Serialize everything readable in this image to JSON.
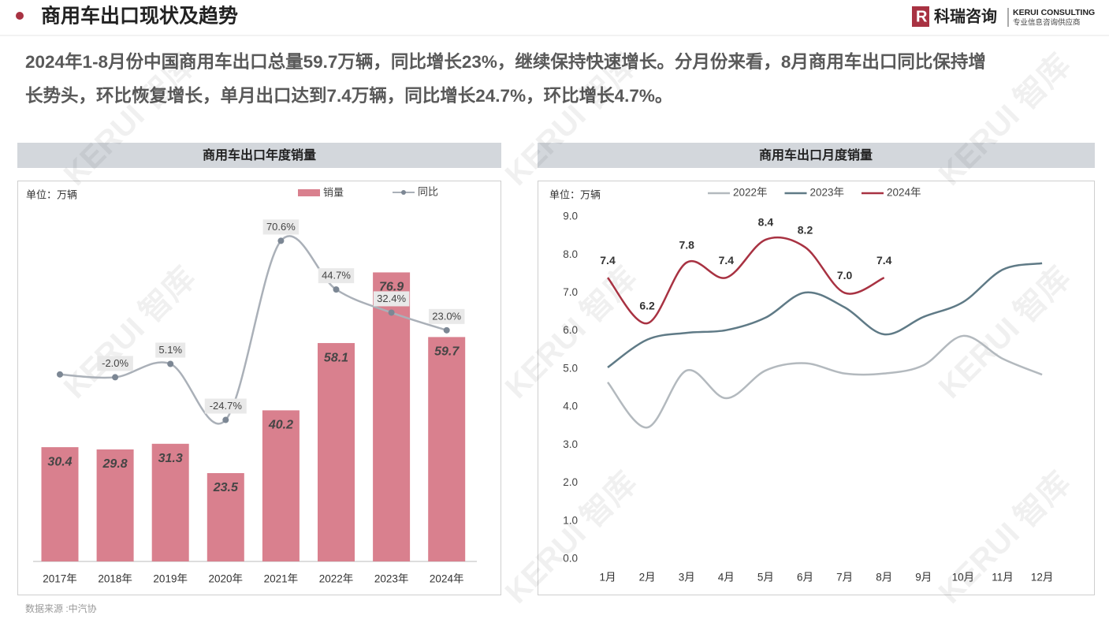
{
  "header": {
    "title": "商用车出口现状及趋势",
    "logo_name": "科瑞咨询",
    "logo_en": "KERUI CONSULTING",
    "logo_sub": "专业信息咨询供应商"
  },
  "paragraph": [
    "2024年1-8月份中国商用车出口总量59.7万辆，同比增长23%，继续保持快速增长。分月份来看，8月商用车出口同比保持增",
    "长势头，环比恢复增长，单月出口达到7.4万辆，同比增长24.7%，环比增长4.7%。"
  ],
  "watermark": "KERUI 智库",
  "source": "数据来源 :中汽协",
  "chart_data": [
    {
      "type": "bar",
      "title": "商用车出口年度销量",
      "unit_label": "单位：万辆",
      "categories": [
        "2017年",
        "2018年",
        "2019年",
        "2020年",
        "2021年",
        "2022年",
        "2023年",
        "2024年"
      ],
      "ylim": [
        0,
        90
      ],
      "y2lim": [
        -100,
        80
      ],
      "series": [
        {
          "name": "销量",
          "type": "bar",
          "color": "#d9808e",
          "values": [
            30.4,
            29.8,
            31.3,
            23.5,
            40.2,
            58.1,
            76.9,
            59.7
          ]
        },
        {
          "name": "同比",
          "type": "line",
          "axis": "y2",
          "color": "#aab0b8",
          "values": [
            -0.5,
            -2.0,
            5.1,
            -24.7,
            70.6,
            44.7,
            32.4,
            23.0
          ],
          "value_labels": [
            null,
            "-2.0%",
            "5.1%",
            "-24.7%",
            "70.6%",
            "44.7%",
            "32.4%",
            "23.0%"
          ]
        }
      ]
    },
    {
      "type": "line",
      "title": "商用车出口月度销量",
      "unit_label": "单位：万辆",
      "categories": [
        "1月",
        "2月",
        "3月",
        "4月",
        "5月",
        "6月",
        "7月",
        "8月",
        "9月",
        "10月",
        "11月",
        "12月"
      ],
      "ylim": [
        0,
        9
      ],
      "yticks": [
        {
          "value": 0,
          "label": "0.0"
        },
        {
          "value": 1,
          "label": "1.0"
        },
        {
          "value": 2,
          "label": "2.0"
        },
        {
          "value": 3,
          "label": "3.0"
        },
        {
          "value": 4,
          "label": "4.0"
        },
        {
          "value": 5,
          "label": "5.0"
        },
        {
          "value": 6,
          "label": "6.0"
        },
        {
          "value": 7,
          "label": "7.0"
        },
        {
          "value": 8,
          "label": "8.0"
        },
        {
          "value": 9,
          "label": "9.0"
        }
      ],
      "series": [
        {
          "name": "2022年",
          "color": "#b3b9be",
          "values": [
            4.65,
            3.46,
            4.96,
            4.23,
            4.96,
            5.15,
            4.88,
            4.88,
            5.1,
            5.87,
            5.27,
            4.85
          ]
        },
        {
          "name": "2023年",
          "color": "#5f7a86",
          "values": [
            5.04,
            5.77,
            5.95,
            6.02,
            6.35,
            7.01,
            6.62,
            5.91,
            6.37,
            6.76,
            7.61,
            7.78
          ]
        },
        {
          "name": "2024年",
          "color": "#a83242",
          "values": [
            7.4,
            6.2,
            7.8,
            7.4,
            8.4,
            8.2,
            7.0,
            7.4,
            null,
            null,
            null,
            null
          ],
          "value_labels": [
            "7.4",
            "6.2",
            "7.8",
            "7.4",
            "8.4",
            "8.2",
            "7.0",
            "7.4",
            null,
            null,
            null,
            null
          ]
        }
      ]
    }
  ]
}
